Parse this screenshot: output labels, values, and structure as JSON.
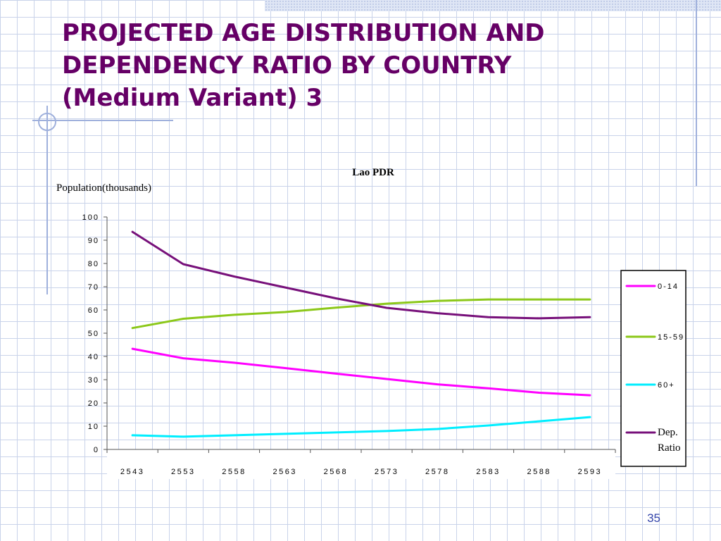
{
  "slide": {
    "title_lines": [
      "PROJECTED AGE DISTRIBUTION AND",
      "DEPENDENCY RATIO BY COUNTRY",
      "(Medium Variant) 3"
    ],
    "page_number": "35",
    "title_color": "#660066"
  },
  "chart_data": {
    "type": "line",
    "title": "Lao PDR",
    "ylabel": "Population(thousands)",
    "xlabel": "",
    "categories": [
      "2543",
      "2553",
      "2558",
      "2563",
      "2568",
      "2573",
      "2578",
      "2583",
      "2588",
      "2593"
    ],
    "ylim": [
      0,
      100
    ],
    "yticks": [
      0,
      10,
      20,
      30,
      40,
      50,
      60,
      70,
      80,
      90,
      100
    ],
    "grid": false,
    "legend_position": "right",
    "series": [
      {
        "name": "0-14",
        "color": "#ff00ff",
        "values": [
          43.3,
          39.2,
          37.3,
          35.0,
          32.6,
          30.3,
          28.0,
          26.3,
          24.4,
          23.3
        ]
      },
      {
        "name": "15-59",
        "color": "#8cc81a",
        "values": [
          52.2,
          56.2,
          57.9,
          59.1,
          61.0,
          62.7,
          63.9,
          64.5,
          64.5,
          64.5
        ]
      },
      {
        "name": "60+",
        "color": "#00eeff",
        "values": [
          6.1,
          5.5,
          6.1,
          6.7,
          7.3,
          7.9,
          8.8,
          10.3,
          12.1,
          13.9
        ]
      },
      {
        "name": "Dep. Ratio",
        "color": "#77107a",
        "values": [
          93.6,
          79.7,
          74.4,
          69.7,
          65.0,
          60.9,
          58.6,
          56.9,
          56.4,
          56.9
        ]
      }
    ]
  }
}
